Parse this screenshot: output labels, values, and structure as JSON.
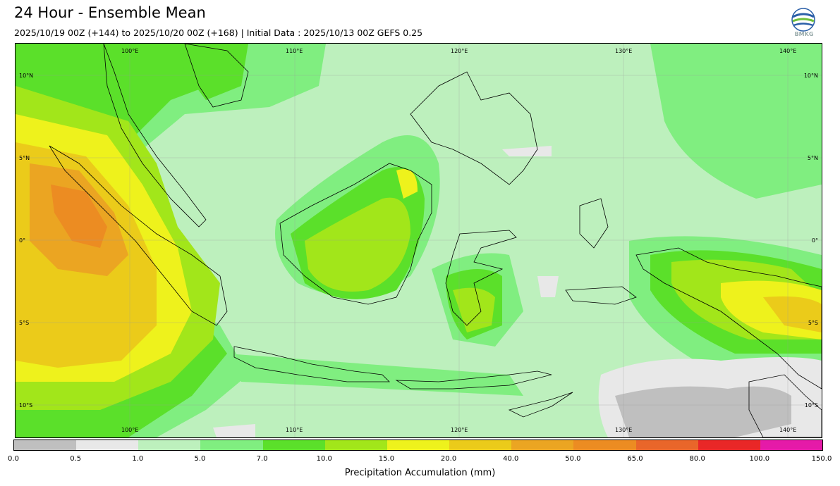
{
  "header": {
    "title": "24 Hour - Ensemble Mean",
    "subtitle": "2025/10/19 00Z (+144) to 2025/10/20 00Z (+168) | Initial Data : 2025/10/13 00Z GEFS 0.25",
    "logo_text": "BMKG"
  },
  "map": {
    "lon_labels_top": [
      "100°E",
      "110°E",
      "120°E",
      "130°E",
      "140°E"
    ],
    "lon_labels_bottom": [
      "100°E",
      "110°E",
      "120°E",
      "130°E",
      "140°E"
    ],
    "lat_labels_left": [
      "10°N",
      "5°N",
      "0°",
      "5°S",
      "10°S"
    ],
    "lat_labels_right": [
      "10°N",
      "5°N",
      "0°",
      "5°S",
      "10°S"
    ]
  },
  "legend": {
    "label": "Precipitation Accumulation (mm)",
    "ticks": [
      "0.0",
      "0.5",
      "1.0",
      "5.0",
      "7.0",
      "10.0",
      "15.0",
      "20.0",
      "40.0",
      "50.0",
      "65.0",
      "80.0",
      "100.0",
      "150.0"
    ],
    "colors": [
      "#bfbfbf",
      "#e8e8e8",
      "#bdf0bd",
      "#80ee80",
      "#5be02a",
      "#a2e61a",
      "#eef21c",
      "#ebcb1a",
      "#eba522",
      "#ec8c22",
      "#e9662a",
      "#e92727",
      "#e51aa8"
    ]
  }
}
